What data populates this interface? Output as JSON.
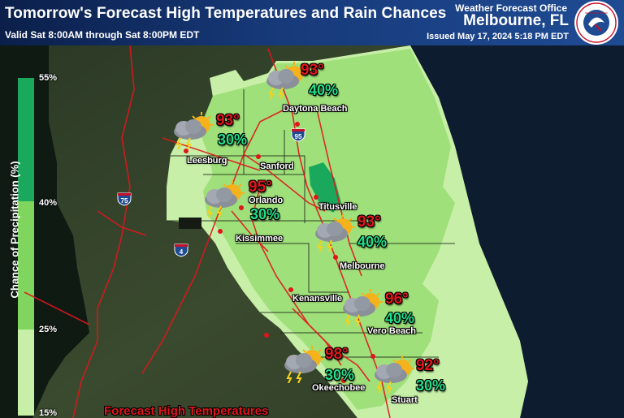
{
  "header": {
    "title": "Tomorrow's Forecast High Temperatures and Rain Chances",
    "valid": "Valid Sat 8:00AM through Sat 8:00PM EDT",
    "office": "Weather Forecast Office",
    "city": "Melbourne, FL",
    "issued": "Issued May 17, 2024 5:18 PM EDT"
  },
  "logo": {
    "name": "noaa-nws-logo"
  },
  "legend": {
    "title": "Chance of Precipitation (%)",
    "levels": [
      {
        "label": "55%",
        "color": "#1aa85c"
      },
      {
        "label": "40%",
        "color": "#7fd55e"
      },
      {
        "label": "25%",
        "color": "#c7efa8"
      },
      {
        "label": "15%",
        "color": "#c7efa8"
      }
    ]
  },
  "colors": {
    "pop_low": "#c7efa8",
    "pop_mid": "#9fe07a",
    "pop_high": "#1aa85c",
    "temp": "#e0161c",
    "pop_text": "#22e08a",
    "roads": "#e0161c"
  },
  "highways": [
    "75",
    "95",
    "4"
  ],
  "cities": [
    {
      "name": "Daytona Beach"
    },
    {
      "name": "Leesburg"
    },
    {
      "name": "Sanford"
    },
    {
      "name": "Orlando"
    },
    {
      "name": "Titusville"
    },
    {
      "name": "Kissimmee"
    },
    {
      "name": "Melbourne"
    },
    {
      "name": "Kenansville"
    },
    {
      "name": "Vero Beach"
    },
    {
      "name": "Okeechobee"
    },
    {
      "name": "Stuart"
    }
  ],
  "forecasts": [
    {
      "city": "Daytona Beach",
      "high": "93°",
      "pop": "40%",
      "icon": "thunderstorm-sun-icon"
    },
    {
      "city": "Leesburg",
      "high": "93°",
      "pop": "30%",
      "icon": "thunderstorm-sun-icon"
    },
    {
      "city": "Orlando",
      "high": "95°",
      "pop": "30%",
      "icon": "thunderstorm-sun-icon"
    },
    {
      "city": "Melbourne",
      "high": "93°",
      "pop": "40%",
      "icon": "thunderstorm-sun-icon"
    },
    {
      "city": "Vero Beach",
      "high": "96°",
      "pop": "40%",
      "icon": "thunderstorm-sun-icon"
    },
    {
      "city": "Okeechobee",
      "high": "98°",
      "pop": "30%",
      "icon": "thunderstorm-sun-icon"
    },
    {
      "city": "Stuart",
      "high": "92°",
      "pop": "30%",
      "icon": "thunderstorm-sun-icon"
    }
  ],
  "footer": "Forecast High Temperatures"
}
